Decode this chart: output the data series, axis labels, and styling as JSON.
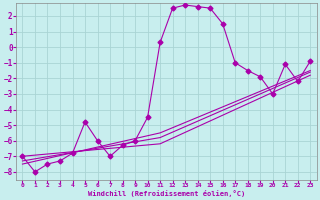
{
  "xlabel": "Windchill (Refroidissement éolien,°C)",
  "xlim": [
    -0.5,
    23.5
  ],
  "ylim": [
    -8.5,
    2.8
  ],
  "yticks": [
    2,
    1,
    0,
    -1,
    -2,
    -3,
    -4,
    -5,
    -6,
    -7,
    -8
  ],
  "xticks": [
    0,
    1,
    2,
    3,
    4,
    5,
    6,
    7,
    8,
    9,
    10,
    11,
    12,
    13,
    14,
    15,
    16,
    17,
    18,
    19,
    20,
    21,
    22,
    23
  ],
  "bg_color": "#c8eeee",
  "grid_color": "#aad4d4",
  "line_color": "#aa00aa",
  "main_x": [
    0,
    1,
    2,
    3,
    4,
    5,
    6,
    7,
    8,
    9,
    10,
    11,
    12,
    13,
    14,
    15,
    16,
    17,
    18,
    19,
    20,
    21,
    22,
    23
  ],
  "main_y": [
    -7.0,
    -8.0,
    -7.5,
    -7.3,
    -6.8,
    -4.8,
    -6.0,
    -7.0,
    -6.3,
    -6.0,
    -4.5,
    0.3,
    2.5,
    2.7,
    2.6,
    2.5,
    1.5,
    -1.0,
    -1.5,
    -1.9,
    -3.0,
    -1.1,
    -2.2,
    -0.9
  ],
  "trend_lines": [
    {
      "x": [
        0,
        11,
        23
      ],
      "y": [
        -7.0,
        -6.2,
        -1.8
      ]
    },
    {
      "x": [
        0,
        11,
        23
      ],
      "y": [
        -7.3,
        -5.8,
        -1.6
      ]
    },
    {
      "x": [
        0,
        11,
        23
      ],
      "y": [
        -7.5,
        -5.5,
        -1.5
      ]
    }
  ]
}
